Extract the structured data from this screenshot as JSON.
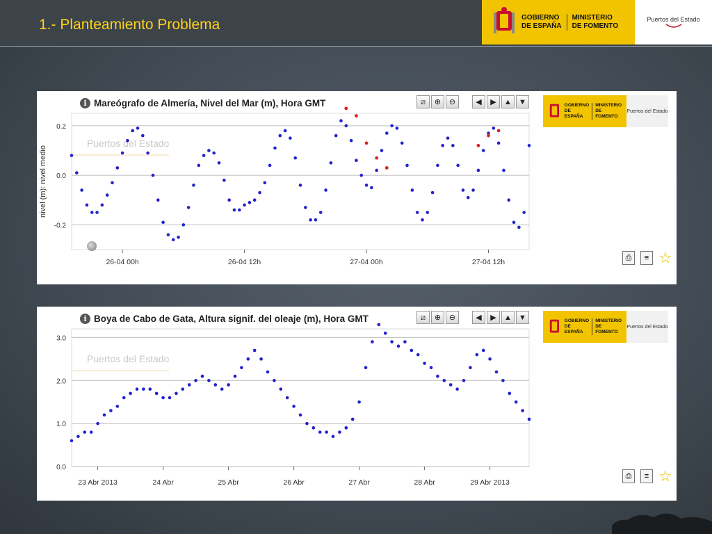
{
  "slide": {
    "title": "1.- Planteamiento Problema"
  },
  "gov_logo": {
    "line1a": "GOBIERNO",
    "line1b": "DE ESPAÑA",
    "line2a": "MINISTERIO",
    "line2b": "DE FOMENTO",
    "agency": "Puertos del Estado"
  },
  "colors": {
    "series": "#2222cc",
    "flagged": "#dd2222",
    "title_yellow": "#ffd21a",
    "logo_yellow": "#f2c400"
  },
  "toolbar_icons": [
    "chart-icon",
    "zoom-in-icon",
    "zoom-out-icon",
    "arrow-left-icon",
    "arrow-right-icon",
    "arrow-up-icon",
    "arrow-down-icon"
  ],
  "chart_data": [
    {
      "type": "scatter",
      "title": "Mareógrafo de Almería, Nivel del Mar (m), Hora GMT",
      "ylabel": "nivel (m): nivel medio",
      "watermark": "Puertos del Estado",
      "ylim": [
        -0.3,
        0.25
      ],
      "xlim": [
        0,
        45
      ],
      "x_unit": "hours from 25-04 19h",
      "yticks": [
        -0.2,
        0.0,
        0.2
      ],
      "xticks": [
        {
          "x": 5,
          "label": "26-04 00h"
        },
        {
          "x": 17,
          "label": "26-04 12h"
        },
        {
          "x": 29,
          "label": "27-04 00h"
        },
        {
          "x": 41,
          "label": "27-04 12h"
        }
      ],
      "note": "x in hours from 25-04 19h (tick at 26-04 00h = 5)",
      "series": [
        {
          "name": "nivel",
          "x": [
            0,
            0.5,
            1,
            1.5,
            2,
            2.5,
            3,
            3.5,
            4,
            4.5,
            5,
            5.5,
            6,
            6.5,
            7,
            7.5,
            8,
            8.5,
            9,
            9.5,
            10,
            10.5,
            11,
            11.5,
            12,
            12.5,
            13,
            13.5,
            14,
            14.5,
            15,
            15.5,
            16,
            16.5,
            17,
            17.5,
            18,
            18.5,
            19,
            19.5,
            20,
            20.5,
            21,
            21.5,
            22,
            22.5,
            23,
            23.5,
            24,
            24.5,
            25,
            25.5,
            26,
            26.5,
            27,
            27.5,
            28,
            28.5,
            29,
            29.5,
            30,
            30.5,
            31,
            31.5,
            32,
            32.5,
            33,
            33.5,
            34,
            34.5,
            35,
            35.5,
            36,
            36.5,
            37,
            37.5,
            38,
            38.5,
            39,
            39.5,
            40,
            40.5,
            41,
            41.5,
            42,
            42.5,
            43,
            43.5,
            44,
            44.5,
            45
          ],
          "y": [
            0.08,
            0.01,
            -0.06,
            -0.12,
            -0.15,
            -0.15,
            -0.12,
            -0.08,
            -0.03,
            0.03,
            0.09,
            0.14,
            0.18,
            0.19,
            0.16,
            0.09,
            0.0,
            -0.1,
            -0.19,
            -0.24,
            -0.26,
            -0.25,
            -0.2,
            -0.13,
            -0.04,
            0.04,
            0.08,
            0.1,
            0.09,
            0.05,
            -0.02,
            -0.1,
            -0.14,
            -0.14,
            -0.12,
            -0.11,
            -0.1,
            -0.07,
            -0.03,
            0.04,
            0.11,
            0.16,
            0.18,
            0.15,
            0.07,
            -0.04,
            -0.13,
            -0.18,
            -0.18,
            -0.15,
            -0.06,
            0.05,
            0.16,
            0.22,
            0.2,
            0.14,
            0.06,
            0.0,
            -0.04,
            -0.05,
            0.02,
            0.1,
            0.17,
            0.2,
            0.19,
            0.13,
            0.04,
            -0.06,
            -0.15,
            -0.18,
            -0.15,
            -0.07,
            0.04,
            0.12,
            0.15,
            0.12,
            0.04,
            -0.06,
            -0.09,
            -0.06,
            0.02,
            0.1,
            0.17,
            0.19,
            0.13,
            0.02,
            -0.1,
            -0.19,
            -0.21,
            -0.15,
            0.12
          ]
        },
        {
          "name": "flagged",
          "x": [
            27,
            28,
            29,
            30,
            31,
            40,
            41,
            42
          ],
          "y": [
            0.27,
            0.24,
            0.13,
            0.07,
            0.03,
            0.12,
            0.16,
            0.18
          ]
        }
      ]
    },
    {
      "type": "scatter",
      "title": "Boya de Cabo de Gata, Altura signif. del oleaje (m), Hora GMT",
      "watermark": "Puertos del Estado",
      "ylim": [
        0,
        3.2
      ],
      "xlim": [
        0,
        7
      ],
      "x_unit": "days",
      "yticks": [
        0.0,
        1.0,
        2.0,
        3.0
      ],
      "xticks": [
        {
          "x": 0.4,
          "label": "23 Abr 2013"
        },
        {
          "x": 1.4,
          "label": "24 Abr"
        },
        {
          "x": 2.4,
          "label": "25 Abr"
        },
        {
          "x": 3.4,
          "label": "26 Abr"
        },
        {
          "x": 4.4,
          "label": "27 Abr"
        },
        {
          "x": 5.4,
          "label": "28 Abr"
        },
        {
          "x": 6.4,
          "label": "29 Abr 2013"
        }
      ],
      "series": [
        {
          "name": "hs",
          "x": [
            0,
            0.1,
            0.2,
            0.3,
            0.4,
            0.5,
            0.6,
            0.7,
            0.8,
            0.9,
            1.0,
            1.1,
            1.2,
            1.3,
            1.4,
            1.5,
            1.6,
            1.7,
            1.8,
            1.9,
            2.0,
            2.1,
            2.2,
            2.3,
            2.4,
            2.5,
            2.6,
            2.7,
            2.8,
            2.9,
            3.0,
            3.1,
            3.2,
            3.3,
            3.4,
            3.5,
            3.6,
            3.7,
            3.8,
            3.9,
            4.0,
            4.1,
            4.2,
            4.3,
            4.4,
            4.5,
            4.6,
            4.7,
            4.8,
            4.9,
            5.0,
            5.1,
            5.2,
            5.3,
            5.4,
            5.5,
            5.6,
            5.7,
            5.8,
            5.9,
            6.0,
            6.1,
            6.2,
            6.3,
            6.4,
            6.5,
            6.6,
            6.7,
            6.8,
            6.9,
            7.0
          ],
          "y": [
            0.6,
            0.7,
            0.8,
            0.8,
            1.0,
            1.2,
            1.3,
            1.4,
            1.6,
            1.7,
            1.8,
            1.8,
            1.8,
            1.7,
            1.6,
            1.6,
            1.7,
            1.8,
            1.9,
            2.0,
            2.1,
            2.0,
            1.9,
            1.8,
            1.9,
            2.1,
            2.3,
            2.5,
            2.7,
            2.5,
            2.2,
            2.0,
            1.8,
            1.6,
            1.4,
            1.2,
            1.0,
            0.9,
            0.8,
            0.8,
            0.7,
            0.8,
            0.9,
            1.1,
            1.5,
            2.3,
            2.9,
            3.3,
            3.1,
            2.9,
            2.8,
            2.9,
            2.7,
            2.6,
            2.4,
            2.3,
            2.1,
            2.0,
            1.9,
            1.8,
            2.0,
            2.3,
            2.6,
            2.7,
            2.5,
            2.2,
            2.0,
            1.7,
            1.5,
            1.3,
            1.1
          ]
        }
      ]
    }
  ]
}
